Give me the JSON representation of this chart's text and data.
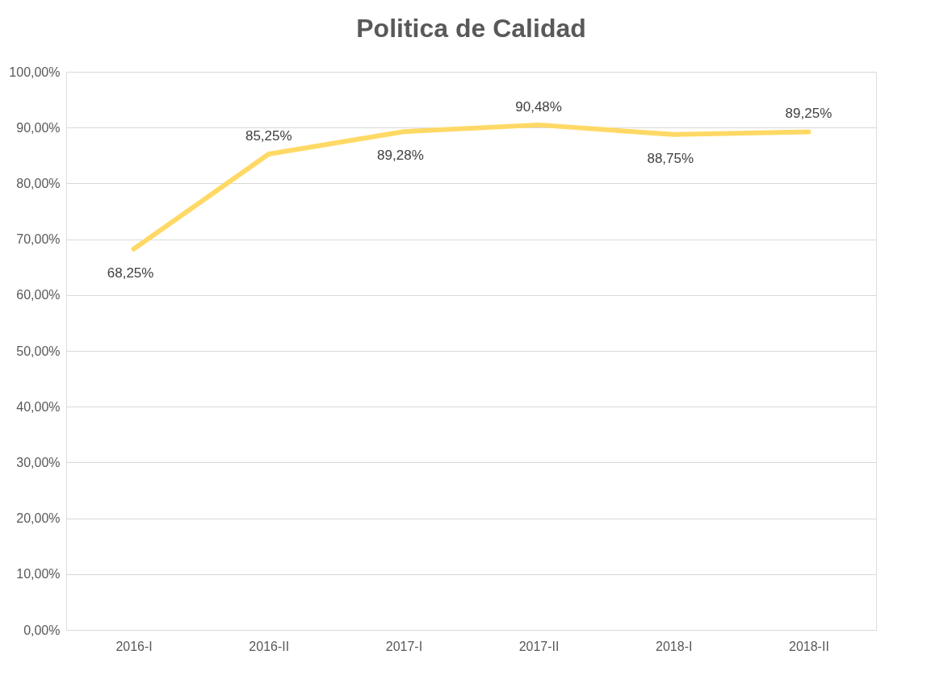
{
  "chart_data": {
    "type": "line",
    "title": "Politica de Calidad",
    "categories": [
      "2016-I",
      "2016-II",
      "2017-I",
      "2017-II",
      "2018-I",
      "2018-II"
    ],
    "values": [
      68.25,
      85.25,
      89.28,
      90.48,
      88.75,
      89.25
    ],
    "value_labels": [
      "68,25%",
      "85,25%",
      "89,28%",
      "90,48%",
      "88,75%",
      "89,25%"
    ],
    "color": "#ffd966",
    "ylim": [
      0,
      100
    ],
    "yticks": [
      {
        "value": 0,
        "label": "0,00%"
      },
      {
        "value": 10,
        "label": "10,00%"
      },
      {
        "value": 20,
        "label": "20,00%"
      },
      {
        "value": 30,
        "label": "30,00%"
      },
      {
        "value": 40,
        "label": "40,00%"
      },
      {
        "value": 50,
        "label": "50,00%"
      },
      {
        "value": 60,
        "label": "60,00%"
      },
      {
        "value": 70,
        "label": "70,00%"
      },
      {
        "value": 80,
        "label": "80,00%"
      },
      {
        "value": 90,
        "label": "90,00%"
      },
      {
        "value": 100,
        "label": "100,00%"
      }
    ],
    "grid": "y",
    "marker": "none",
    "line_style": "solid"
  }
}
